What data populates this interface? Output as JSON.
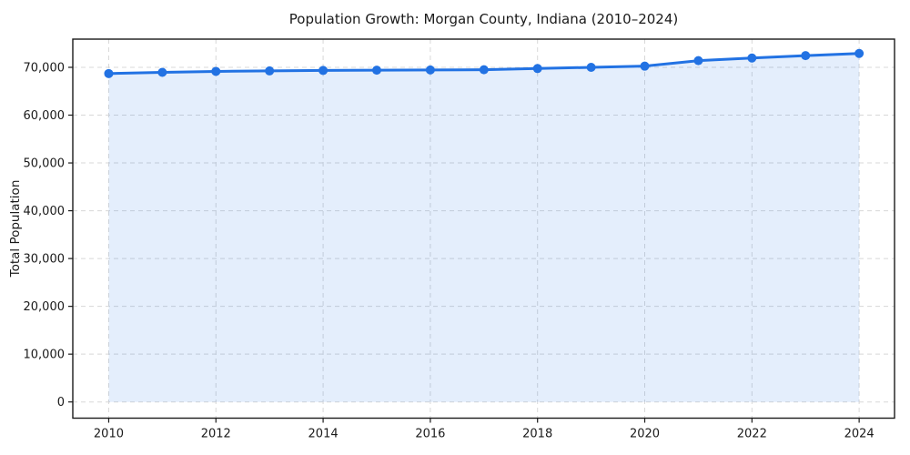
{
  "chart_data": {
    "type": "area",
    "title": "Population Growth: Morgan County, Indiana (2010–2024)",
    "xlabel": "",
    "ylabel": "Total Population",
    "x": [
      2010,
      2011,
      2012,
      2013,
      2014,
      2015,
      2016,
      2017,
      2018,
      2019,
      2020,
      2021,
      2022,
      2023,
      2024
    ],
    "series": [
      {
        "name": "Total Population",
        "values": [
          68700,
          68950,
          69150,
          69250,
          69350,
          69400,
          69450,
          69500,
          69750,
          70000,
          70250,
          71400,
          71950,
          72450,
          72900
        ]
      }
    ],
    "xticks": [
      2010,
      2012,
      2014,
      2016,
      2018,
      2020,
      2022,
      2024
    ],
    "xtick_labels": [
      "2010",
      "2012",
      "2014",
      "2016",
      "2018",
      "2020",
      "2022",
      "2024"
    ],
    "yticks": [
      0,
      10000,
      20000,
      30000,
      40000,
      50000,
      60000,
      70000
    ],
    "ytick_labels": [
      "0",
      "10,000",
      "20,000",
      "30,000",
      "40,000",
      "50,000",
      "60,000",
      "70,000"
    ],
    "xlim": [
      2009.33,
      2024.66
    ],
    "ylim": [
      -3390,
      75900
    ],
    "grid": true,
    "grid_style": "dashed",
    "legend": "none",
    "fill_baseline": 0,
    "marker": "circle",
    "marker_radius": 5,
    "line_width": 3,
    "colors": {
      "line": "#2272e3",
      "marker": "#2272e3",
      "fill": "rgba(34,114,227,0.12)",
      "grid": "#d8d8d8",
      "spine": "#1a1a1a",
      "text": "#1a1a1a",
      "background": "#ffffff"
    }
  }
}
